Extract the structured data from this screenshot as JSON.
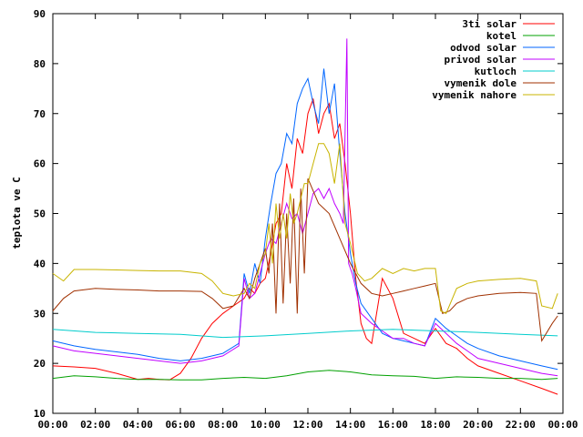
{
  "chart_data": {
    "type": "line",
    "title": "",
    "xlabel": "",
    "ylabel": "teplota ve C",
    "xlim": [
      "00:00",
      "24:00"
    ],
    "ylim": [
      10,
      90
    ],
    "x_ticks": [
      "00:00",
      "02:00",
      "04:00",
      "06:00",
      "08:00",
      "10:00",
      "12:00",
      "14:00",
      "16:00",
      "18:00",
      "20:00",
      "22:00",
      "00:00"
    ],
    "y_ticks": [
      10,
      20,
      30,
      40,
      50,
      60,
      70,
      80,
      90
    ],
    "grid": false,
    "legend_position": "top-right",
    "series": [
      {
        "name": "3ti solar",
        "color": "#ff0000",
        "x": [
          "00:00",
          "01:00",
          "02:00",
          "03:00",
          "04:00",
          "04:30",
          "05:00",
          "05:30",
          "06:00",
          "06:30",
          "07:00",
          "07:30",
          "08:00",
          "08:30",
          "09:00",
          "09:15",
          "09:30",
          "09:45",
          "10:00",
          "10:15",
          "10:30",
          "10:45",
          "11:00",
          "11:15",
          "11:30",
          "11:45",
          "12:00",
          "12:15",
          "12:30",
          "12:45",
          "13:00",
          "13:15",
          "13:30",
          "13:45",
          "14:00",
          "14:15",
          "14:30",
          "14:45",
          "15:00",
          "15:30",
          "16:00",
          "16:30",
          "17:00",
          "17:30",
          "18:00",
          "18:30",
          "19:00",
          "19:30",
          "20:00",
          "21:00",
          "22:00",
          "23:00",
          "23:45"
        ],
        "values": [
          19.5,
          19.3,
          19.0,
          18.0,
          16.8,
          17.0,
          16.8,
          16.7,
          18.0,
          21.0,
          25.0,
          28.0,
          30.0,
          31.5,
          33.0,
          35.0,
          34.0,
          36.0,
          37.0,
          42.0,
          48.0,
          50.0,
          60.0,
          55.0,
          65.0,
          62.0,
          70.0,
          73.0,
          66.0,
          70.0,
          72.0,
          65.0,
          68.0,
          60.0,
          50.0,
          37.0,
          28.0,
          25.0,
          24.0,
          37.0,
          33.0,
          26.0,
          25.0,
          24.0,
          27.0,
          24.0,
          23.0,
          21.0,
          19.5,
          18.0,
          16.5,
          15.0,
          13.8
        ]
      },
      {
        "name": "kotel",
        "color": "#00a000",
        "x": [
          "00:00",
          "01:00",
          "02:00",
          "03:00",
          "04:00",
          "05:00",
          "06:00",
          "07:00",
          "08:00",
          "09:00",
          "10:00",
          "11:00",
          "12:00",
          "13:00",
          "14:00",
          "15:00",
          "16:00",
          "17:00",
          "18:00",
          "19:00",
          "20:00",
          "21:00",
          "22:00",
          "23:00",
          "23:45"
        ],
        "values": [
          17.0,
          17.5,
          17.3,
          17.0,
          16.8,
          16.8,
          16.7,
          16.7,
          17.0,
          17.2,
          17.0,
          17.5,
          18.3,
          18.6,
          18.3,
          17.7,
          17.5,
          17.4,
          17.0,
          17.3,
          17.2,
          17.0,
          17.0,
          16.8,
          17.0
        ]
      },
      {
        "name": "odvod solar",
        "color": "#0066ff",
        "x": [
          "00:00",
          "01:00",
          "02:00",
          "03:00",
          "04:00",
          "05:00",
          "06:00",
          "07:00",
          "08:00",
          "08:45",
          "09:00",
          "09:15",
          "09:30",
          "09:45",
          "10:00",
          "10:15",
          "10:30",
          "10:45",
          "11:00",
          "11:15",
          "11:30",
          "11:45",
          "12:00",
          "12:15",
          "12:30",
          "12:45",
          "13:00",
          "13:15",
          "13:30",
          "13:45",
          "14:00",
          "14:15",
          "14:30",
          "15:00",
          "15:30",
          "16:00",
          "16:30",
          "17:00",
          "17:30",
          "18:00",
          "18:30",
          "19:00",
          "19:30",
          "20:00",
          "21:00",
          "22:00",
          "23:00",
          "23:45"
        ],
        "values": [
          24.5,
          23.5,
          22.8,
          22.3,
          21.8,
          21.0,
          20.5,
          21.0,
          22.0,
          24.0,
          38.0,
          34.0,
          40.0,
          36.0,
          45.0,
          52.0,
          58.0,
          60.0,
          66.0,
          64.0,
          72.0,
          75.0,
          77.0,
          72.0,
          68.0,
          79.0,
          70.0,
          76.0,
          62.0,
          50.0,
          42.0,
          36.0,
          32.0,
          29.0,
          26.0,
          25.0,
          24.5,
          24.0,
          23.5,
          29.0,
          27.0,
          25.5,
          24.0,
          23.0,
          21.5,
          20.5,
          19.5,
          18.8
        ]
      },
      {
        "name": "privod solar",
        "color": "#c000ff",
        "x": [
          "00:00",
          "01:00",
          "02:00",
          "03:00",
          "04:00",
          "05:00",
          "06:00",
          "07:00",
          "08:00",
          "08:45",
          "09:00",
          "09:15",
          "09:30",
          "09:45",
          "10:00",
          "10:15",
          "10:30",
          "10:45",
          "11:00",
          "11:15",
          "11:30",
          "11:45",
          "12:00",
          "12:15",
          "12:30",
          "12:45",
          "13:00",
          "13:15",
          "13:30",
          "13:40",
          "13:50",
          "13:55",
          "14:05",
          "14:15",
          "14:30",
          "15:00",
          "15:30",
          "16:00",
          "16:30",
          "17:00",
          "17:30",
          "18:00",
          "18:30",
          "19:00",
          "19:30",
          "20:00",
          "21:00",
          "22:00",
          "23:00",
          "23:45"
        ],
        "values": [
          23.5,
          22.5,
          22.0,
          21.5,
          21.0,
          20.5,
          20.0,
          20.5,
          21.5,
          23.5,
          37.0,
          33.0,
          34.0,
          38.0,
          42.0,
          45.0,
          44.0,
          48.0,
          52.0,
          49.0,
          50.0,
          46.0,
          50.0,
          54.0,
          55.0,
          53.0,
          55.0,
          52.0,
          50.0,
          48.0,
          85.0,
          40.0,
          38.0,
          35.0,
          30.0,
          28.0,
          26.5,
          25.0,
          25.0,
          24.0,
          23.5,
          28.0,
          26.0,
          24.0,
          22.5,
          21.0,
          20.0,
          19.0,
          18.0,
          17.5
        ]
      },
      {
        "name": "kutloch",
        "color": "#00cccc",
        "x": [
          "00:00",
          "02:00",
          "04:00",
          "06:00",
          "08:00",
          "10:00",
          "12:00",
          "14:00",
          "16:00",
          "18:00",
          "20:00",
          "22:00",
          "23:45"
        ],
        "values": [
          26.8,
          26.2,
          26.0,
          25.8,
          25.2,
          25.5,
          26.0,
          26.5,
          26.8,
          26.5,
          26.2,
          25.8,
          25.5
        ]
      },
      {
        "name": "vymenik dole",
        "color": "#a03000",
        "x": [
          "00:00",
          "00:30",
          "01:00",
          "02:00",
          "03:00",
          "04:00",
          "05:00",
          "06:00",
          "07:00",
          "07:30",
          "08:00",
          "08:30",
          "09:00",
          "09:15",
          "09:30",
          "09:45",
          "10:00",
          "10:10",
          "10:20",
          "10:30",
          "10:40",
          "10:50",
          "11:00",
          "11:10",
          "11:20",
          "11:30",
          "11:40",
          "11:50",
          "12:00",
          "12:30",
          "13:00",
          "13:30",
          "14:00",
          "14:30",
          "15:00",
          "15:30",
          "16:00",
          "16:30",
          "17:00",
          "17:30",
          "18:00",
          "18:20",
          "18:40",
          "19:00",
          "19:30",
          "20:00",
          "21:00",
          "22:00",
          "22:45",
          "23:00",
          "23:30",
          "23:45"
        ],
        "values": [
          30.5,
          33.0,
          34.5,
          35.0,
          34.8,
          34.7,
          34.5,
          34.5,
          34.4,
          33.0,
          31.0,
          31.5,
          35.0,
          33.0,
          37.0,
          40.0,
          43.0,
          38.0,
          48.0,
          30.0,
          52.0,
          32.0,
          50.0,
          36.0,
          53.0,
          30.0,
          55.0,
          38.0,
          57.0,
          52.0,
          50.0,
          45.0,
          40.0,
          36.0,
          34.0,
          33.5,
          34.0,
          34.5,
          35.0,
          35.5,
          36.0,
          30.0,
          30.5,
          32.0,
          33.0,
          33.5,
          34.0,
          34.2,
          34.0,
          24.5,
          28.0,
          29.5
        ]
      },
      {
        "name": "vymenik nahore",
        "color": "#c8b400",
        "x": [
          "00:00",
          "00:30",
          "01:00",
          "02:00",
          "03:00",
          "04:00",
          "05:00",
          "06:00",
          "07:00",
          "07:30",
          "08:00",
          "08:30",
          "09:00",
          "09:15",
          "09:30",
          "09:45",
          "10:00",
          "10:10",
          "10:20",
          "10:30",
          "10:40",
          "10:50",
          "11:00",
          "11:10",
          "11:20",
          "11:30",
          "11:40",
          "11:50",
          "12:00",
          "12:15",
          "12:30",
          "12:45",
          "13:00",
          "13:15",
          "13:30",
          "13:45",
          "14:00",
          "14:20",
          "14:40",
          "15:00",
          "15:30",
          "16:00",
          "16:30",
          "17:00",
          "17:30",
          "18:00",
          "18:15",
          "18:30",
          "19:00",
          "19:30",
          "20:00",
          "21:00",
          "22:00",
          "22:45",
          "23:00",
          "23:30",
          "23:45"
        ],
        "values": [
          38.0,
          36.5,
          38.8,
          38.8,
          38.7,
          38.6,
          38.5,
          38.5,
          38.0,
          36.5,
          34.0,
          33.5,
          34.0,
          36.0,
          35.0,
          40.0,
          42.0,
          48.0,
          40.0,
          52.0,
          45.0,
          50.0,
          45.0,
          54.0,
          48.0,
          50.0,
          53.0,
          56.0,
          56.0,
          60.0,
          64.0,
          64.0,
          62.0,
          56.0,
          64.0,
          48.0,
          44.0,
          38.0,
          36.5,
          37.0,
          39.0,
          38.0,
          39.0,
          38.5,
          39.0,
          39.0,
          30.5,
          30.0,
          35.0,
          36.0,
          36.5,
          36.8,
          37.0,
          36.5,
          31.5,
          31.0,
          34.0
        ]
      }
    ]
  }
}
